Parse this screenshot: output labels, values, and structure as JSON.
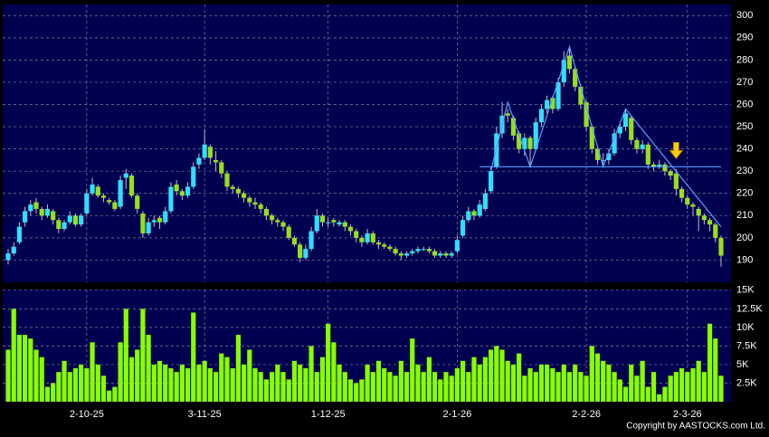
{
  "chart_data": {
    "type": "candlestick",
    "categories": [
      null,
      null,
      null,
      null,
      null,
      null,
      null,
      null,
      null,
      null,
      null,
      null,
      null,
      null,
      "2-10-25",
      null,
      null,
      null,
      null,
      null,
      null,
      null,
      null,
      null,
      null,
      null,
      null,
      null,
      null,
      null,
      null,
      null,
      null,
      null,
      null,
      "3-11-25",
      null,
      null,
      null,
      null,
      null,
      null,
      null,
      null,
      null,
      null,
      null,
      null,
      null,
      null,
      null,
      null,
      null,
      null,
      null,
      null,
      null,
      "1-12-25",
      null,
      null,
      null,
      null,
      null,
      null,
      null,
      null,
      null,
      null,
      null,
      null,
      null,
      null,
      null,
      null,
      null,
      null,
      null,
      null,
      null,
      null,
      "2-1-26",
      null,
      null,
      null,
      null,
      null,
      null,
      null,
      null,
      null,
      null,
      null,
      null,
      null,
      null,
      null,
      null,
      null,
      null,
      null,
      null,
      null,
      null,
      "2-2-26",
      null,
      null,
      null,
      null,
      null,
      null,
      null,
      null,
      null,
      null,
      null,
      null,
      null,
      null,
      null,
      null,
      null,
      "2-3-26",
      null,
      null,
      null,
      null,
      null,
      null
    ],
    "ohlc": [
      [
        190,
        195,
        188,
        193
      ],
      [
        193,
        198,
        192,
        196
      ],
      [
        198,
        207,
        197,
        205
      ],
      [
        207,
        214,
        205,
        212
      ],
      [
        212,
        217,
        210,
        215
      ],
      [
        216,
        218,
        211,
        213
      ],
      [
        213,
        214,
        208,
        210
      ],
      [
        210,
        215,
        209,
        213
      ],
      [
        212,
        213,
        206,
        208
      ],
      [
        208,
        209,
        202,
        204
      ],
      [
        204,
        208,
        203,
        207
      ],
      [
        207,
        212,
        206,
        210
      ],
      [
        210,
        211,
        205,
        206
      ],
      [
        206,
        211,
        205,
        210
      ],
      [
        211,
        222,
        210,
        220
      ],
      [
        220,
        227,
        219,
        224
      ],
      [
        223,
        224,
        218,
        219
      ],
      [
        219,
        220,
        216,
        218
      ],
      [
        217,
        218,
        215,
        216
      ],
      [
        216,
        217,
        212,
        213
      ],
      [
        214,
        228,
        213,
        226
      ],
      [
        227,
        231,
        222,
        229
      ],
      [
        228,
        229,
        218,
        219
      ],
      [
        219,
        220,
        211,
        213
      ],
      [
        211,
        212,
        200,
        202
      ],
      [
        202,
        209,
        201,
        207
      ],
      [
        207,
        210,
        205,
        208
      ],
      [
        209,
        210,
        204,
        207
      ],
      [
        207,
        214,
        206,
        212
      ],
      [
        212,
        225,
        211,
        223
      ],
      [
        224,
        226,
        219,
        221
      ],
      [
        221,
        222,
        217,
        219
      ],
      [
        219,
        225,
        218,
        223
      ],
      [
        223,
        234,
        222,
        232
      ],
      [
        233,
        238,
        231,
        236
      ],
      [
        236,
        249,
        235,
        242
      ],
      [
        241,
        242,
        233,
        236
      ],
      [
        235,
        239,
        230,
        234
      ],
      [
        234,
        235,
        227,
        229
      ],
      [
        229,
        230,
        221,
        223
      ],
      [
        223,
        224,
        220,
        222
      ],
      [
        222,
        223,
        218,
        220
      ],
      [
        220,
        221,
        216,
        218
      ],
      [
        218,
        219,
        214,
        216
      ],
      [
        216,
        218,
        213,
        215
      ],
      [
        215,
        216,
        211,
        213
      ],
      [
        213,
        214,
        208,
        210
      ],
      [
        210,
        211,
        206,
        208
      ],
      [
        208,
        209,
        205,
        207
      ],
      [
        207,
        208,
        203,
        205
      ],
      [
        205,
        206,
        199,
        200
      ],
      [
        200,
        201,
        196,
        197
      ],
      [
        197,
        198,
        189,
        191
      ],
      [
        191,
        197,
        190,
        195
      ],
      [
        195,
        205,
        194,
        203
      ],
      [
        203,
        213,
        202,
        210
      ],
      [
        210,
        211,
        205,
        207
      ],
      [
        207,
        209,
        205,
        207
      ],
      [
        208,
        209,
        205,
        207
      ],
      [
        206,
        208,
        205,
        207
      ],
      [
        207,
        208,
        203,
        205
      ],
      [
        205,
        206,
        201,
        203
      ],
      [
        203,
        204,
        198,
        200
      ],
      [
        200,
        201,
        196,
        198
      ],
      [
        198,
        204,
        197,
        202
      ],
      [
        202,
        203,
        197,
        198
      ],
      [
        198,
        199,
        195,
        197
      ],
      [
        197,
        198,
        195,
        196
      ],
      [
        196,
        197,
        194,
        195
      ],
      [
        195,
        196,
        192,
        193
      ],
      [
        193,
        194,
        190,
        192
      ],
      [
        192,
        194,
        191,
        193
      ],
      [
        193,
        195,
        192,
        194
      ],
      [
        194,
        196,
        193,
        195
      ],
      [
        195,
        196,
        194,
        195
      ],
      [
        195,
        196,
        193,
        194
      ],
      [
        194,
        195,
        191,
        192
      ],
      [
        192,
        194,
        191,
        193
      ],
      [
        193,
        194,
        191,
        192
      ],
      [
        192,
        194,
        191,
        193
      ],
      [
        194,
        201,
        193,
        199
      ],
      [
        201,
        210,
        200,
        208
      ],
      [
        208,
        214,
        207,
        212
      ],
      [
        212,
        213,
        208,
        210
      ],
      [
        210,
        217,
        209,
        215
      ],
      [
        213,
        222,
        212,
        220
      ],
      [
        221,
        232,
        220,
        230
      ],
      [
        232,
        250,
        231,
        247
      ],
      [
        247,
        261,
        245,
        255
      ],
      [
        256,
        258,
        252,
        255
      ],
      [
        254,
        255,
        244,
        246
      ],
      [
        247,
        248,
        238,
        240
      ],
      [
        240,
        247,
        237,
        245
      ],
      [
        245,
        246,
        233,
        240
      ],
      [
        240,
        254,
        239,
        252
      ],
      [
        252,
        260,
        250,
        258
      ],
      [
        258,
        264,
        256,
        262
      ],
      [
        263,
        264,
        256,
        258
      ],
      [
        258,
        272,
        257,
        270
      ],
      [
        270,
        284,
        268,
        280
      ],
      [
        282,
        286,
        274,
        276
      ],
      [
        276,
        277,
        266,
        268
      ],
      [
        268,
        269,
        258,
        260
      ],
      [
        261,
        262,
        248,
        250
      ],
      [
        250,
        251,
        238,
        240
      ],
      [
        240,
        241,
        233,
        235
      ],
      [
        235,
        238,
        232,
        235
      ],
      [
        235,
        240,
        233,
        238
      ],
      [
        238,
        249,
        237,
        247
      ],
      [
        247,
        252,
        245,
        250
      ],
      [
        250,
        258,
        248,
        256
      ],
      [
        254,
        255,
        242,
        244
      ],
      [
        244,
        245,
        238,
        240
      ],
      [
        240,
        244,
        238,
        242
      ],
      [
        242,
        243,
        231,
        233
      ],
      [
        233,
        234,
        230,
        232
      ],
      [
        232,
        235,
        231,
        233
      ],
      [
        233,
        234,
        228,
        230
      ],
      [
        230,
        231,
        226,
        228
      ],
      [
        229,
        231,
        219,
        222
      ],
      [
        222,
        223,
        216,
        218
      ],
      [
        218,
        219,
        213,
        215
      ],
      [
        215,
        216,
        210,
        214
      ],
      [
        213,
        214,
        203,
        210
      ],
      [
        210,
        211,
        206,
        208
      ],
      [
        208,
        209,
        203,
        206
      ],
      [
        206,
        207,
        198,
        200
      ],
      [
        200,
        201,
        187,
        192
      ]
    ],
    "volume": [
      7,
      12.5,
      9,
      9,
      8.5,
      7,
      6,
      2,
      2.5,
      4,
      5.5,
      4,
      4.5,
      5,
      4.5,
      8,
      5,
      3.5,
      1.5,
      2,
      8,
      12.5,
      6,
      7,
      12.5,
      9,
      5,
      5.5,
      5,
      4.5,
      4,
      5,
      4.5,
      12,
      5,
      5.5,
      4.5,
      4,
      6.5,
      6,
      4.5,
      9,
      5,
      7,
      4.5,
      4,
      3,
      4,
      5,
      4,
      3,
      5.5,
      5,
      4.5,
      7.5,
      4,
      6,
      10.5,
      8,
      5,
      4,
      3,
      2.5,
      3,
      5,
      4,
      5.5,
      4.5,
      4,
      3.5,
      5.5,
      4,
      8.5,
      5,
      4,
      6,
      4,
      3,
      4,
      3.5,
      4.5,
      5.5,
      4,
      6,
      5,
      6,
      7,
      7.5,
      7,
      5.5,
      5,
      6.5,
      3.5,
      4.5,
      4,
      5,
      5,
      4.5,
      4,
      5,
      4,
      5,
      4,
      3.5,
      7.5,
      6.5,
      5.5,
      5,
      4,
      3,
      2,
      5,
      3.5,
      5.5,
      2,
      4,
      1,
      2,
      3.5,
      4,
      4.5,
      4,
      4.5,
      5.5,
      4,
      10.5,
      8.5,
      3.5
    ],
    "up_color": "#33ddff",
    "down_color": "#99dd22",
    "volume_color": "#88ff00",
    "ylim": [
      180,
      305
    ],
    "yticks": [
      190,
      200,
      210,
      220,
      230,
      240,
      250,
      260,
      270,
      280,
      290,
      300
    ],
    "vlim": [
      0,
      15.1
    ],
    "vticks": [
      {
        "value": 2.5,
        "label": "2.5K"
      },
      {
        "value": 5,
        "label": "5K"
      },
      {
        "value": 7.5,
        "label": "7.5K"
      },
      {
        "value": 10,
        "label": "10K"
      },
      {
        "value": 12.5,
        "label": "12.5K"
      },
      {
        "value": 15,
        "label": "15K"
      }
    ],
    "neckline": {
      "from": 84,
      "to": 127,
      "value": 232
    },
    "pattern": {
      "x": [
        86,
        89,
        93,
        100,
        106,
        110,
        127
      ],
      "y": [
        230,
        261,
        232,
        286,
        232,
        258,
        205
      ]
    },
    "arrow": {
      "index": 119,
      "value": 234
    },
    "grid": true,
    "copyright": "Copyright by AASTOCKS.com Ltd."
  }
}
